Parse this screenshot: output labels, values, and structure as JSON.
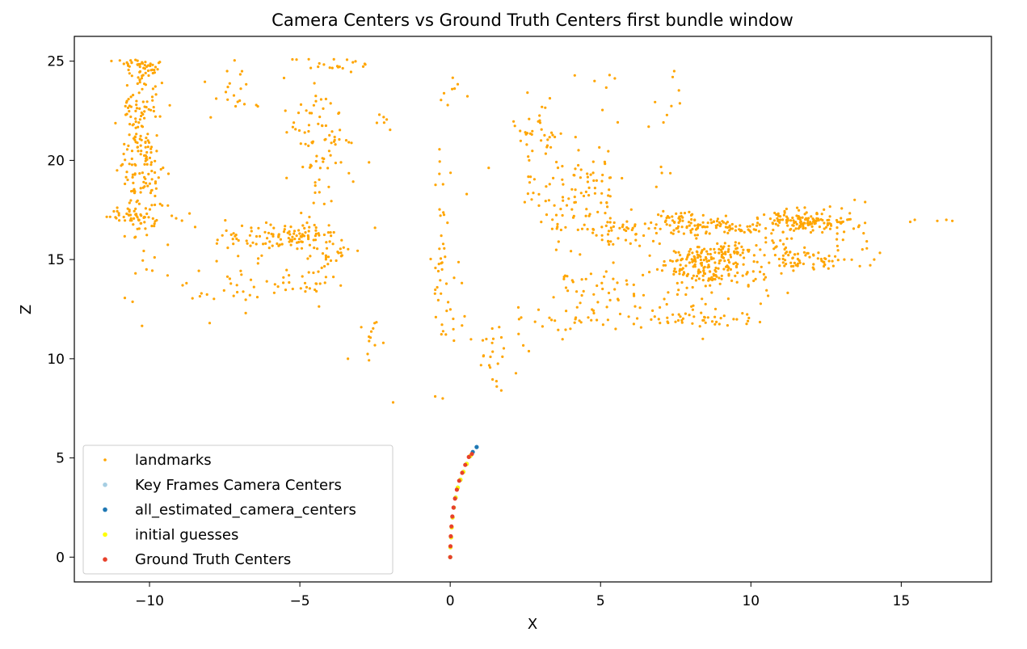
{
  "chart_data": {
    "type": "scatter",
    "title": "Camera Centers vs Ground Truth Centers first bundle window",
    "xlabel": "X",
    "ylabel": "Z",
    "xlim": [
      -12.5,
      18.0
    ],
    "ylim": [
      -1.25,
      26.25
    ],
    "xticks": [
      -10,
      -5,
      0,
      5,
      10,
      15
    ],
    "yticks": [
      0,
      5,
      10,
      15,
      20,
      25
    ],
    "xtick_labels": [
      "−10",
      "−5",
      "0",
      "5",
      "10",
      "15"
    ],
    "ytick_labels": [
      "0",
      "5",
      "10",
      "15",
      "20",
      "25"
    ],
    "grid": false,
    "legend_position": "lower-left",
    "series": [
      {
        "name": "landmarks",
        "color": "#ffa500",
        "clusters": [
          {
            "cx": -10.3,
            "cz": 20.5,
            "sx": 0.35,
            "sz": 3.2,
            "n": 230
          },
          {
            "cx": -10.5,
            "cz": 17.2,
            "sx": 0.5,
            "sz": 0.25,
            "n": 40
          },
          {
            "cx": -10.1,
            "cz": 24.6,
            "sx": 0.6,
            "sz": 0.3,
            "n": 20
          },
          {
            "cx": -7.0,
            "cz": 23.6,
            "sx": 0.6,
            "sz": 0.8,
            "n": 20
          },
          {
            "cx": -6.6,
            "cz": 16.0,
            "sx": 0.8,
            "sz": 0.5,
            "n": 55
          },
          {
            "cx": -5.0,
            "cz": 16.2,
            "sx": 0.6,
            "sz": 0.25,
            "n": 55
          },
          {
            "cx": -4.4,
            "cz": 20.8,
            "sx": 0.5,
            "sz": 2.0,
            "n": 90
          },
          {
            "cx": -5.0,
            "cz": 13.8,
            "sx": 0.6,
            "sz": 0.8,
            "n": 30
          },
          {
            "cx": -4.0,
            "cz": 15.5,
            "sx": 0.4,
            "sz": 0.8,
            "n": 30
          },
          {
            "cx": -3.5,
            "cz": 24.8,
            "sx": 0.5,
            "sz": 0.2,
            "n": 12
          },
          {
            "cx": -7.5,
            "cz": 14.0,
            "sx": 0.6,
            "sz": 0.6,
            "n": 20
          },
          {
            "cx": -2.7,
            "cz": 11.0,
            "sx": 0.15,
            "sz": 0.7,
            "n": 12
          },
          {
            "cx": -2.3,
            "cz": 22.0,
            "sx": 0.2,
            "sz": 0.3,
            "n": 6
          },
          {
            "cx": -0.35,
            "cz": 16.0,
            "sx": 0.15,
            "sz": 2.6,
            "n": 30
          },
          {
            "cx": 0.0,
            "cz": 13.0,
            "sx": 0.3,
            "sz": 1.6,
            "n": 18
          },
          {
            "cx": 0.0,
            "cz": 23.3,
            "sx": 0.2,
            "sz": 0.5,
            "n": 8
          },
          {
            "cx": 1.4,
            "cz": 10.2,
            "sx": 0.4,
            "sz": 0.9,
            "n": 22
          },
          {
            "cx": 2.8,
            "cz": 21.2,
            "sx": 0.5,
            "sz": 1.1,
            "n": 40
          },
          {
            "cx": 3.5,
            "cz": 17.2,
            "sx": 0.5,
            "sz": 1.2,
            "n": 35
          },
          {
            "cx": 4.7,
            "cz": 18.2,
            "sx": 0.6,
            "sz": 1.1,
            "n": 60
          },
          {
            "cx": 5.6,
            "cz": 16.4,
            "sx": 0.5,
            "sz": 0.4,
            "n": 45
          },
          {
            "cx": 5.5,
            "cz": 13.2,
            "sx": 0.6,
            "sz": 0.7,
            "n": 30
          },
          {
            "cx": 3.8,
            "cz": 11.9,
            "sx": 0.9,
            "sz": 0.5,
            "n": 25
          },
          {
            "cx": 4.1,
            "cz": 13.9,
            "sx": 0.5,
            "sz": 0.5,
            "n": 15
          },
          {
            "cx": 7.9,
            "cz": 16.8,
            "sx": 0.8,
            "sz": 0.3,
            "n": 90
          },
          {
            "cx": 8.4,
            "cz": 15.0,
            "sx": 0.8,
            "sz": 0.3,
            "n": 100
          },
          {
            "cx": 9.2,
            "cz": 15.4,
            "sx": 0.6,
            "sz": 0.25,
            "n": 45
          },
          {
            "cx": 8.6,
            "cz": 14.2,
            "sx": 0.8,
            "sz": 0.25,
            "n": 70
          },
          {
            "cx": 8.2,
            "cz": 12.0,
            "sx": 0.9,
            "sz": 0.2,
            "n": 40
          },
          {
            "cx": 7.9,
            "cz": 13.0,
            "sx": 0.7,
            "sz": 0.6,
            "n": 25
          },
          {
            "cx": 9.6,
            "cz": 16.6,
            "sx": 0.6,
            "sz": 0.2,
            "n": 35
          },
          {
            "cx": 10.5,
            "cz": 14.2,
            "sx": 0.6,
            "sz": 0.6,
            "n": 20
          },
          {
            "cx": 11.8,
            "cz": 16.9,
            "sx": 0.8,
            "sz": 0.3,
            "n": 140
          },
          {
            "cx": 12.0,
            "cz": 15.0,
            "sx": 0.8,
            "sz": 0.3,
            "n": 55
          },
          {
            "cx": 11.2,
            "cz": 15.8,
            "sx": 0.5,
            "sz": 0.6,
            "n": 20
          },
          {
            "cx": 13.5,
            "cz": 16.2,
            "sx": 0.4,
            "sz": 0.7,
            "n": 15
          },
          {
            "cx": 7.3,
            "cz": 21.5,
            "sx": 0.4,
            "sz": 1.8,
            "n": 10
          },
          {
            "cx": 5.0,
            "cz": 22.8,
            "sx": 0.4,
            "sz": 1.0,
            "n": 6
          }
        ],
        "points": [
          [
            15.3,
            16.9
          ],
          [
            15.45,
            17.0
          ],
          [
            16.2,
            16.95
          ],
          [
            16.5,
            17.0
          ],
          [
            16.7,
            16.95
          ],
          [
            14.1,
            15.0
          ],
          [
            13.8,
            17.9
          ],
          [
            -1.9,
            7.8
          ],
          [
            -0.5,
            8.1
          ],
          [
            -0.25,
            8.0
          ],
          [
            -8.9,
            13.7
          ],
          [
            -8.0,
            11.8
          ],
          [
            -3.4,
            10.0
          ],
          [
            -10.1,
            14.5
          ],
          [
            -9.4,
            14.2
          ],
          [
            -6.8,
            12.3
          ],
          [
            -6.1,
            13.9
          ],
          [
            -2.7,
            19.9
          ],
          [
            -2.5,
            16.6
          ],
          [
            4.8,
            24.0
          ],
          [
            5.3,
            24.3
          ],
          [
            7.4,
            24.2
          ],
          [
            7.45,
            24.5
          ],
          [
            6.6,
            21.7
          ],
          [
            8.4,
            11.0
          ],
          [
            9.9,
            11.9
          ],
          [
            10.3,
            11.85
          ],
          [
            1.7,
            8.4
          ],
          [
            1.55,
            8.6
          ],
          [
            0.55,
            18.3
          ]
        ]
      },
      {
        "name": "Key Frames Camera Centers",
        "color": "#a6cee3",
        "points": [
          [
            0.0,
            0.0
          ],
          [
            0.88,
            5.55
          ]
        ]
      },
      {
        "name": "all_estimated_camera_centers",
        "color": "#1f78b4",
        "points": [
          [
            0.0,
            0.0
          ],
          [
            0.01,
            0.5
          ],
          [
            0.03,
            1.0
          ],
          [
            0.05,
            1.5
          ],
          [
            0.08,
            2.0
          ],
          [
            0.12,
            2.5
          ],
          [
            0.18,
            3.0
          ],
          [
            0.25,
            3.5
          ],
          [
            0.34,
            3.9
          ],
          [
            0.44,
            4.3
          ],
          [
            0.55,
            4.7
          ],
          [
            0.67,
            5.1
          ],
          [
            0.75,
            5.3
          ],
          [
            0.88,
            5.55
          ]
        ]
      },
      {
        "name": "initial guesses",
        "color": "#ffff00",
        "points": [
          [
            0.0,
            0.0
          ],
          [
            0.01,
            0.5
          ],
          [
            0.03,
            1.0
          ],
          [
            0.05,
            1.5
          ],
          [
            0.08,
            2.0
          ],
          [
            0.12,
            2.5
          ],
          [
            0.18,
            3.0
          ],
          [
            0.25,
            3.5
          ],
          [
            0.34,
            3.9
          ],
          [
            0.44,
            4.3
          ],
          [
            0.55,
            4.7
          ],
          [
            0.67,
            5.1
          ]
        ]
      },
      {
        "name": "Ground Truth Centers",
        "color": "#e8412b",
        "points": [
          [
            0.0,
            0.0
          ],
          [
            0.01,
            0.55
          ],
          [
            0.02,
            1.05
          ],
          [
            0.04,
            1.55
          ],
          [
            0.07,
            2.05
          ],
          [
            0.11,
            2.5
          ],
          [
            0.16,
            2.95
          ],
          [
            0.22,
            3.4
          ],
          [
            0.3,
            3.85
          ],
          [
            0.4,
            4.25
          ],
          [
            0.5,
            4.65
          ],
          [
            0.62,
            5.05
          ],
          [
            0.72,
            5.2
          ]
        ]
      }
    ]
  }
}
